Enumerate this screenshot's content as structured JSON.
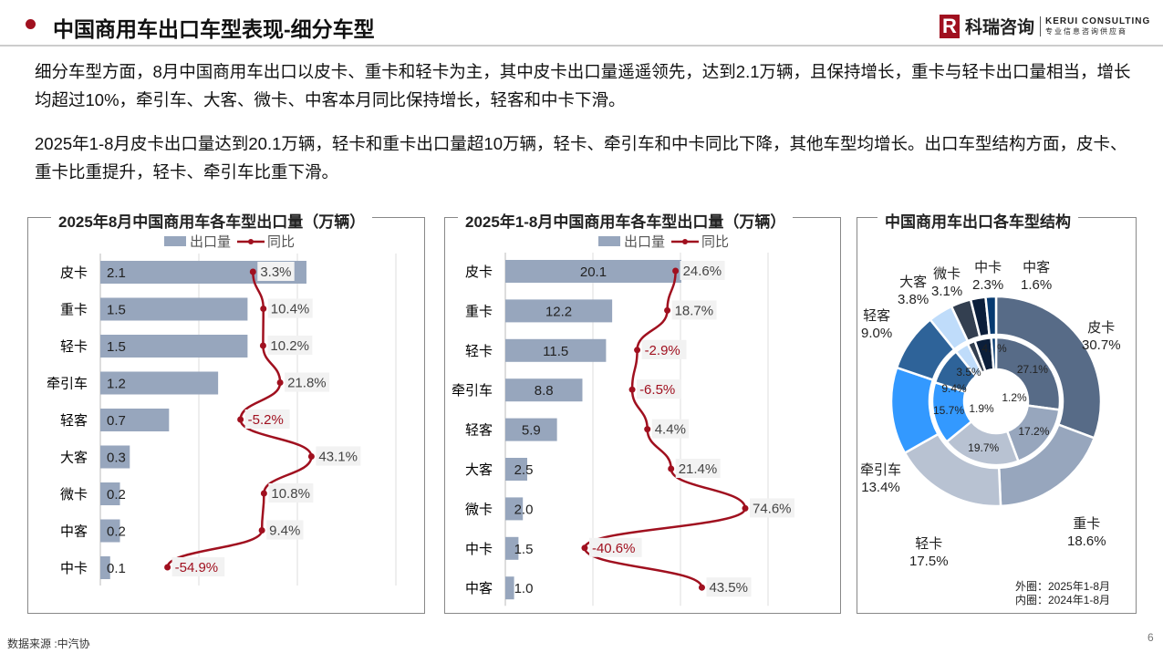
{
  "header": {
    "title": "中国商用车出口车型表现-细分车型",
    "logo_mark": "R",
    "logo_cn": "科瑞咨询",
    "logo_en": "KERUI CONSULTING",
    "logo_sub": "专业信息咨询供应商"
  },
  "paragraphs": [
    "细分车型方面，8月中国商用车出口以皮卡、重卡和轻卡为主，其中皮卡出口量遥遥领先，达到2.1万辆，且保持增长，重卡与轻卡出口量相当，增长均超过10%，牵引车、大客、微卡、中客本月同比保持增长，轻客和中卡下滑。",
    "2025年1-8月皮卡出口量达到20.1万辆，轻卡和重卡出口量超10万辆，轻卡、牵引车和中卡同比下降，其他车型均增长。出口车型结构方面，皮卡、重卡比重提升，轻卡、牵引车比重下滑。"
  ],
  "footer": {
    "source": "数据来源 :中汽协",
    "page": "6"
  },
  "colors": {
    "bar": "#97a6bd",
    "line": "#a0101f",
    "accent": "#a0101f"
  },
  "chart_data": [
    {
      "type": "bar",
      "title": "2025年8月中国商用车各车型出口量（万辆）",
      "legend": [
        "出口量",
        "同比"
      ],
      "categories": [
        "皮卡",
        "重卡",
        "轻卡",
        "牵引车",
        "轻客",
        "大客",
        "微卡",
        "中客",
        "中卡"
      ],
      "series": [
        {
          "name": "出口量",
          "values": [
            2.1,
            1.5,
            1.5,
            1.2,
            0.7,
            0.3,
            0.2,
            0.2,
            0.1
          ],
          "labels": [
            "2.1",
            "1.5",
            "1.5",
            "1.2",
            "0.7",
            "0.3",
            "0.2",
            "0.2",
            "0.1"
          ]
        },
        {
          "name": "同比",
          "values": [
            3.3,
            10.4,
            10.2,
            21.8,
            -5.2,
            43.1,
            10.8,
            9.4,
            -54.9
          ],
          "labels": [
            "3.3%",
            "10.4%",
            "10.2%",
            "21.8%",
            "-5.2%",
            "43.1%",
            "10.8%",
            "9.4%",
            "-54.9%"
          ]
        }
      ]
    },
    {
      "type": "bar",
      "title": "2025年1-8月中国商用车各车型出口量（万辆）",
      "legend": [
        "出口量",
        "同比"
      ],
      "categories": [
        "皮卡",
        "重卡",
        "轻卡",
        "牵引车",
        "轻客",
        "大客",
        "微卡",
        "中卡",
        "中客"
      ],
      "series": [
        {
          "name": "出口量",
          "values": [
            20.1,
            12.2,
            11.5,
            8.8,
            5.9,
            2.5,
            2.0,
            1.5,
            1.0
          ],
          "labels": [
            "20.1",
            "12.2",
            "11.5",
            "8.8",
            "5.9",
            "2.5",
            "2.0",
            "1.5",
            "1.0"
          ]
        },
        {
          "name": "同比",
          "values": [
            24.6,
            18.7,
            -2.9,
            -6.5,
            4.4,
            21.4,
            74.6,
            -40.6,
            43.5
          ],
          "labels": [
            "24.6%",
            "18.7%",
            "-2.9%",
            "-6.5%",
            "4.4%",
            "21.4%",
            "74.6%",
            "-40.6%",
            "43.5%"
          ]
        }
      ]
    },
    {
      "type": "pie",
      "title": "中国商用车出口各车型结构",
      "categories": [
        "皮卡",
        "重卡",
        "轻卡",
        "牵引车",
        "轻客",
        "大客",
        "微卡",
        "中卡",
        "中客"
      ],
      "colors": [
        "#576b87",
        "#97a6bd",
        "#b8c2d2",
        "#3399ff",
        "#2e6399",
        "#bfdcfa",
        "#333f50",
        "#0b1e3a",
        "#073a70"
      ],
      "series": [
        {
          "name": "外圈：2025年1-8月",
          "values": [
            30.7,
            18.6,
            17.5,
            13.4,
            9.0,
            3.8,
            3.1,
            2.3,
            1.6
          ],
          "labels": [
            "30.7%",
            "18.6%",
            "17.5%",
            "13.4%",
            "9.0%",
            "3.8%",
            "3.1%",
            "2.3%",
            "1.6%"
          ]
        },
        {
          "name": "内圈：2024年1-8月",
          "values": [
            27.1,
            17.2,
            19.7,
            15.7,
            9.4,
            3.5,
            1.9,
            4.2,
            1.2
          ],
          "labels": [
            "27.1%",
            "17.2%",
            "19.7%",
            "15.7%",
            "9.4%",
            "3.5%",
            "1.9%",
            "4.2%",
            "1.2%"
          ]
        }
      ]
    }
  ]
}
